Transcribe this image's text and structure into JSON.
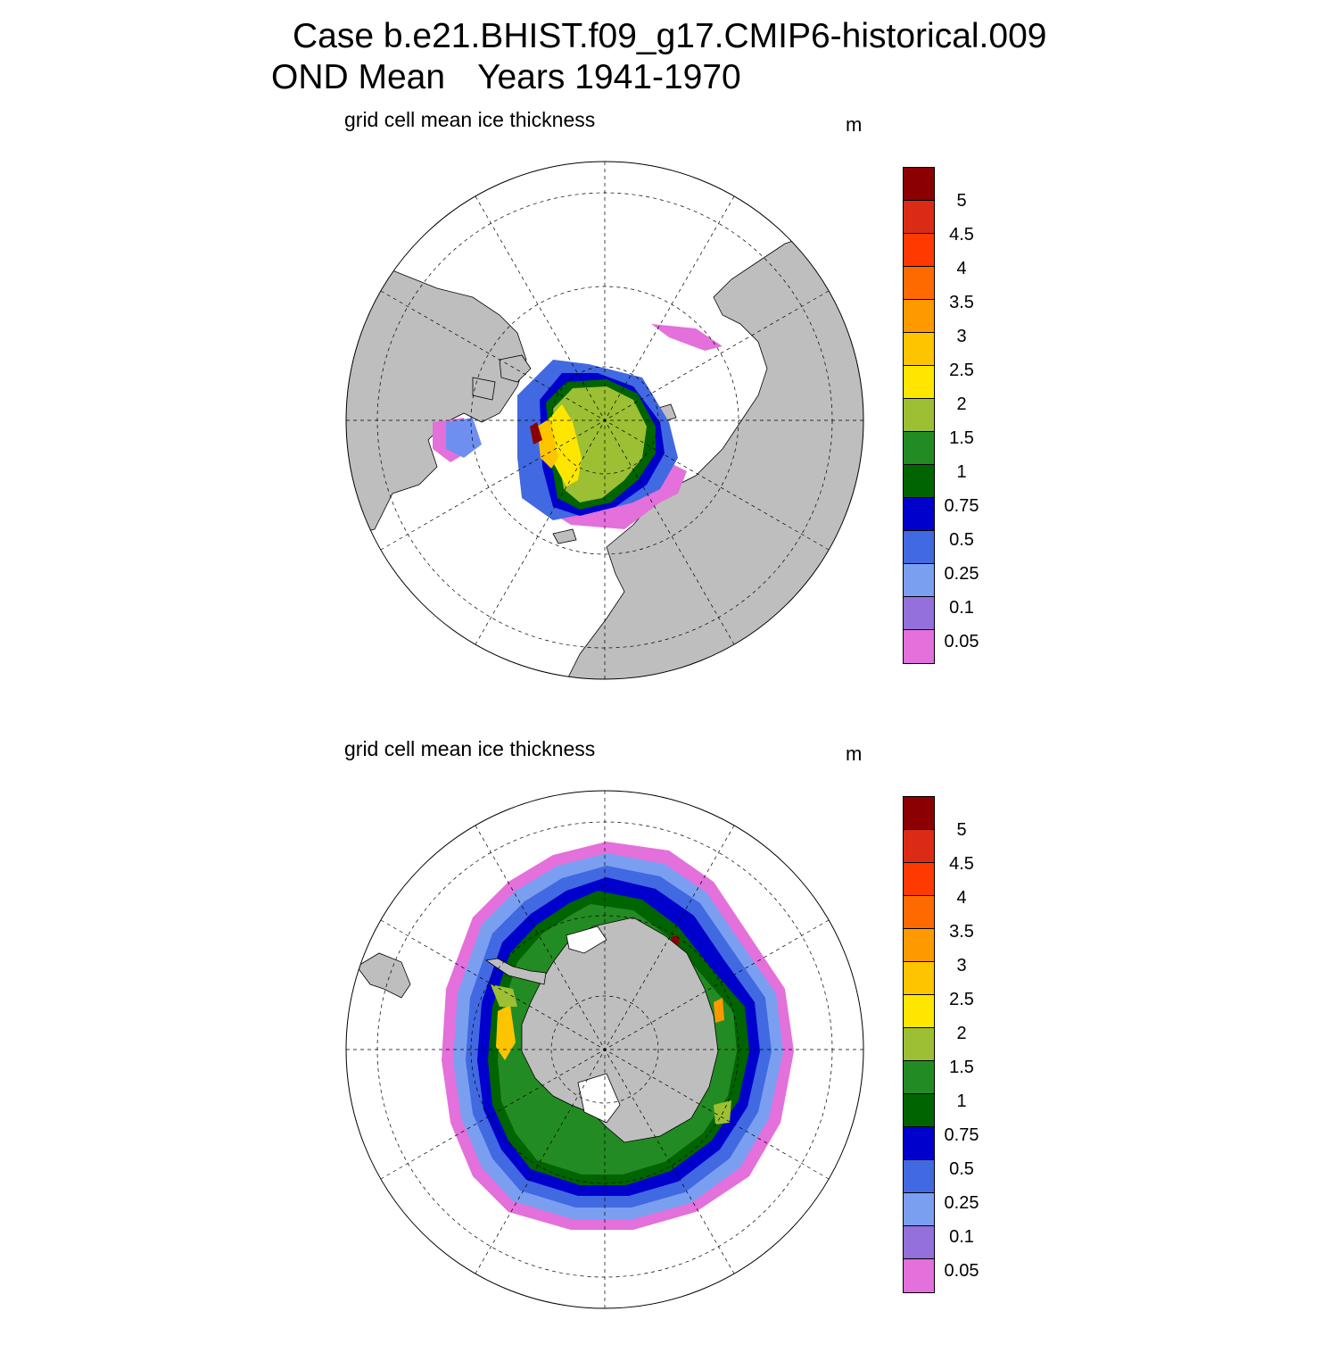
{
  "header": {
    "case_line": "Case b.e21.BHIST.f09_g17.CMIP6-historical.009",
    "season": "OND Mean",
    "years": "Years 1941-1970"
  },
  "panels": [
    {
      "id": "north",
      "label": "grid cell mean ice thickness",
      "unit": "m",
      "hemisphere": "Arctic"
    },
    {
      "id": "south",
      "label": "grid cell mean ice thickness",
      "unit": "m",
      "hemisphere": "Antarctic"
    }
  ],
  "colorbar": {
    "tick_labels": [
      "5",
      "4.5",
      "4",
      "3.5",
      "3",
      "2.5",
      "2",
      "1.5",
      "1",
      "0.75",
      "0.5",
      "0.25",
      "0.1",
      "0.05"
    ],
    "colors_top_to_bottom": [
      "#8b0000",
      "#dc2b15",
      "#ff3a00",
      "#ff6a00",
      "#ff9900",
      "#ffc400",
      "#ffe600",
      "#9cbf33",
      "#238b23",
      "#006400",
      "#0000cd",
      "#4169e1",
      "#7b9ff0",
      "#9370db",
      "#e370db"
    ]
  },
  "colors": {
    "land": "#bebebe",
    "ocean": "#ffffff",
    "grid": "#000000"
  }
}
